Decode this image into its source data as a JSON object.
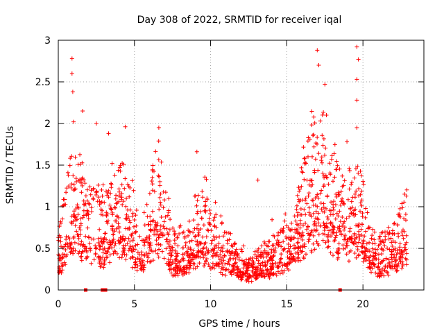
{
  "chart_data": {
    "type": "scatter",
    "title": "Day 308 of 2022, SRMTID for receiver iqal",
    "xlabel": "GPS time / hours",
    "ylabel": "SRMTID / TECUs",
    "xlim": [
      0,
      24
    ],
    "ylim": [
      0,
      3
    ],
    "xticks": [
      0,
      5,
      10,
      15,
      20
    ],
    "xtick_labels": [
      "0",
      "5",
      "10",
      "15",
      "20"
    ],
    "yticks": [
      0,
      0.5,
      1,
      1.5,
      2,
      2.5,
      3
    ],
    "ytick_labels": [
      "0",
      "0.5",
      "1",
      "1.5",
      "2",
      "2.5",
      "3"
    ],
    "grid": true,
    "marker": "+",
    "color": "#ff0000",
    "envelope": {
      "description": "approximate typical SRMTID level vs time (hours, TECU)",
      "x": [
        0,
        0.5,
        1,
        2,
        3,
        4,
        4.5,
        5.5,
        6.5,
        7.5,
        8.5,
        9.5,
        10.5,
        11.5,
        12.5,
        13.5,
        14.5,
        15.5,
        16.5,
        17.5,
        18.5,
        19.5,
        20,
        20.5,
        21.5,
        22,
        22.8
      ],
      "y": [
        0.4,
        0.8,
        1.1,
        0.8,
        0.75,
        1.0,
        0.95,
        0.45,
        1.1,
        0.45,
        0.5,
        0.8,
        0.6,
        0.35,
        0.25,
        0.35,
        0.45,
        0.65,
        1.2,
        1.3,
        0.9,
        1.0,
        0.85,
        0.45,
        0.45,
        0.5,
        0.75
      ]
    },
    "spikes": [
      {
        "x": 0.9,
        "y": 2.78
      },
      {
        "x": 0.9,
        "y": 2.6
      },
      {
        "x": 0.95,
        "y": 2.38
      },
      {
        "x": 1.0,
        "y": 2.02
      },
      {
        "x": 1.6,
        "y": 2.15
      },
      {
        "x": 2.5,
        "y": 2.0
      },
      {
        "x": 3.3,
        "y": 1.88
      },
      {
        "x": 4.4,
        "y": 1.96
      },
      {
        "x": 6.6,
        "y": 1.95
      },
      {
        "x": 9.1,
        "y": 1.66
      },
      {
        "x": 13.1,
        "y": 1.32
      },
      {
        "x": 17.0,
        "y": 2.88
      },
      {
        "x": 17.1,
        "y": 2.7
      },
      {
        "x": 17.5,
        "y": 2.47
      },
      {
        "x": 17.6,
        "y": 2.1
      },
      {
        "x": 19.6,
        "y": 2.92
      },
      {
        "x": 19.7,
        "y": 2.77
      },
      {
        "x": 19.6,
        "y": 2.53
      },
      {
        "x": 19.6,
        "y": 2.28
      },
      {
        "x": 19.6,
        "y": 1.95
      }
    ],
    "zero_markers": [
      1.8,
      2.9,
      3.1,
      18.5
    ]
  }
}
